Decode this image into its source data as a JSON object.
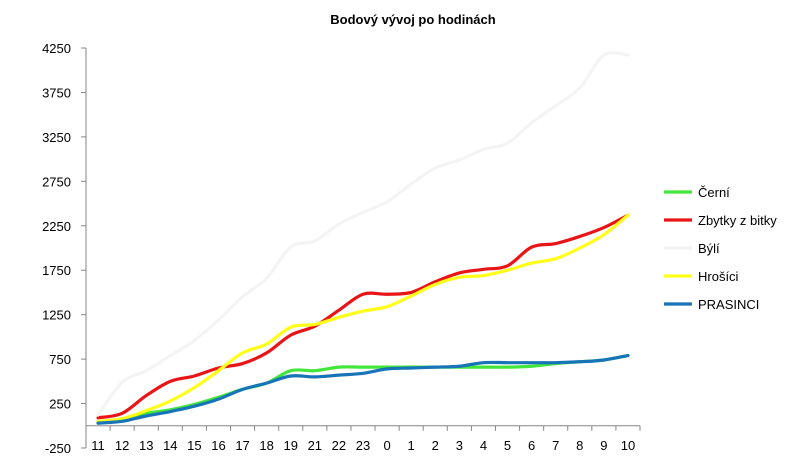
{
  "chart_data": {
    "type": "line",
    "title": "Bodový vývoj po hodinách",
    "xlabel": "",
    "ylabel": "",
    "ylim": [
      -250,
      4250
    ],
    "yticks": [
      -250,
      250,
      750,
      1250,
      1750,
      2250,
      2750,
      3250,
      3750,
      4250
    ],
    "categories": [
      "11",
      "12",
      "13",
      "14",
      "15",
      "16",
      "17",
      "18",
      "19",
      "21",
      "22",
      "23",
      "0",
      "1",
      "2",
      "3",
      "4",
      "5",
      "6",
      "7",
      "8",
      "9",
      "10"
    ],
    "grid": false,
    "legend_position": "right",
    "series": [
      {
        "name": "Černí",
        "color": "#44e63c",
        "values": [
          30,
          80,
          140,
          180,
          240,
          320,
          410,
          480,
          620,
          620,
          660,
          660,
          660,
          660,
          660,
          660,
          660,
          660,
          670,
          700,
          720,
          740,
          790
        ]
      },
      {
        "name": "Zbytky z bitky",
        "color": "#e81416",
        "values": [
          90,
          140,
          340,
          500,
          560,
          650,
          700,
          820,
          1020,
          1120,
          1300,
          1480,
          1480,
          1500,
          1620,
          1720,
          1760,
          1800,
          2010,
          2050,
          2130,
          2230,
          2370
        ]
      },
      {
        "name": "Býlí",
        "color": "#f4f4f4",
        "values": [
          120,
          490,
          620,
          790,
          960,
          1190,
          1450,
          1660,
          2010,
          2080,
          2270,
          2400,
          2520,
          2720,
          2900,
          2990,
          3110,
          3180,
          3410,
          3600,
          3800,
          4170,
          4170
        ]
      },
      {
        "name": "Hrošíci",
        "color": "#ffff1a",
        "values": [
          50,
          80,
          170,
          280,
          430,
          620,
          820,
          920,
          1110,
          1140,
          1220,
          1290,
          1340,
          1460,
          1590,
          1670,
          1690,
          1750,
          1830,
          1880,
          2000,
          2150,
          2370
        ]
      },
      {
        "name": "PRASINCI",
        "color": "#1874b8",
        "values": [
          30,
          50,
          110,
          160,
          220,
          300,
          410,
          480,
          560,
          550,
          570,
          590,
          640,
          650,
          660,
          670,
          710,
          710,
          710,
          710,
          720,
          740,
          790
        ]
      }
    ]
  }
}
